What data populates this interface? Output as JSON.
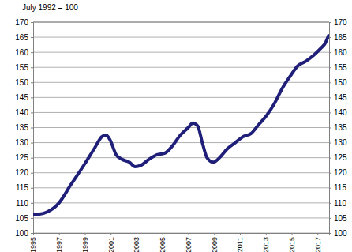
{
  "chart_data": {
    "type": "line",
    "title": "July 1992 = 100",
    "x": [
      1995.0,
      1995.5,
      1996.09,
      1996.5,
      1997.0,
      1997.91,
      1999.0,
      1999.73,
      2000.33,
      2000.64,
      2000.94,
      2001.42,
      2001.85,
      2002.45,
      2002.88,
      2003.36,
      2003.97,
      2004.58,
      2005.18,
      2005.79,
      2006.39,
      2007.0,
      2007.36,
      2007.73,
      2008.09,
      2008.45,
      2008.94,
      2009.42,
      2010.03,
      2010.64,
      2011.24,
      2011.85,
      2012.45,
      2013.06,
      2013.67,
      2014.27,
      2014.88,
      2015.48,
      2016.09,
      2016.7,
      2017.3,
      2017.6,
      2017.85
    ],
    "values": [
      106.2,
      106.3,
      107.0,
      108.0,
      110.0,
      116.0,
      123.0,
      128.0,
      132.0,
      132.5,
      131.0,
      126.0,
      124.5,
      123.5,
      122.0,
      122.5,
      124.5,
      126.0,
      126.5,
      129.0,
      132.5,
      135.0,
      136.5,
      135.5,
      130.0,
      125.0,
      123.5,
      125.0,
      128.0,
      130.0,
      132.0,
      133.0,
      136.0,
      139.0,
      143.0,
      148.0,
      152.0,
      155.5,
      157.0,
      159.0,
      161.5,
      163.0,
      165.5
    ],
    "color": "#1f1f7a",
    "xlim": [
      1995,
      2017.9
    ],
    "xticks": [
      1995,
      1997,
      1999,
      2001,
      2003,
      2005,
      2007,
      2009,
      2011,
      2013,
      2015,
      2017
    ],
    "ylim": [
      100,
      170
    ],
    "yticks": [
      100,
      105,
      110,
      115,
      120,
      125,
      130,
      135,
      140,
      145,
      150,
      155,
      160,
      165,
      170
    ],
    "grid": true
  }
}
